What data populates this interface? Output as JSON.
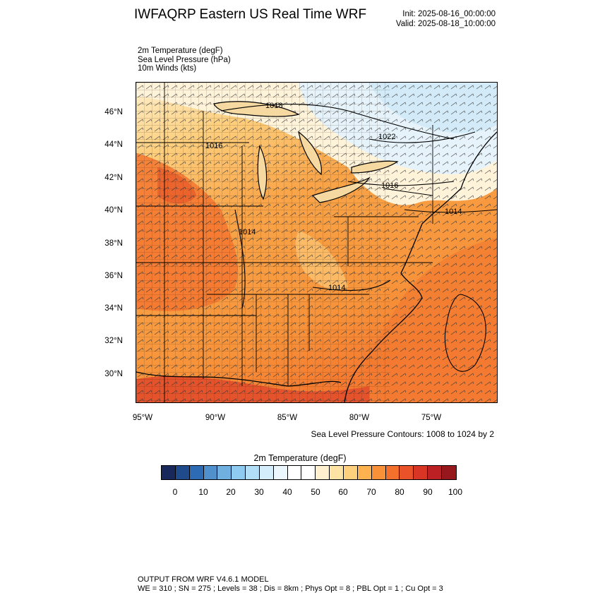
{
  "title": "IWFAQRP Eastern US Real Time WRF",
  "init": "Init: 2025-08-16_00:00:00",
  "valid": "Valid: 2025-08-18_10:00:00",
  "fields": [
    "2m Temperature   (degF)",
    "Sea Level Pressure   (hPa)",
    "10m Winds   (kts)"
  ],
  "lat_labels": [
    "46°N",
    "44°N",
    "42°N",
    "40°N",
    "38°N",
    "36°N",
    "34°N",
    "32°N",
    "30°N"
  ],
  "lon_labels": [
    "95°W",
    "90°W",
    "85°W",
    "80°W",
    "75°W"
  ],
  "isobar_labels": [
    "1018",
    "1022",
    "1016",
    "1014",
    "1014",
    "1014",
    "1016"
  ],
  "contour_note": "Sea Level Pressure Contours: 1008 to 1024 by 2",
  "colorbar": {
    "title": "2m Temperature  (degF)",
    "colors": [
      "#19285a",
      "#1f4a8c",
      "#2d6bb5",
      "#4f90cd",
      "#6fb0e0",
      "#8fcaf0",
      "#b3def7",
      "#d4eefb",
      "#ecf7fd",
      "#ffffff",
      "#ffffff",
      "#fff1cf",
      "#ffe3a5",
      "#fecf7d",
      "#fdb24f",
      "#f99139",
      "#f4712d",
      "#ea5229",
      "#d93525",
      "#bc2024",
      "#96181d"
    ],
    "labels": [
      "0",
      "10",
      "20",
      "30",
      "40",
      "50",
      "60",
      "70",
      "80",
      "90",
      "100"
    ]
  },
  "footer": {
    "line1": "OUTPUT FROM WRF V4.6.1 MODEL",
    "line2": "WE = 310 ; SN = 275 ; Levels = 38 ; Dis = 8km ; Phys Opt = 8 ; PBL Opt = 1 ; Cu Opt = 3"
  }
}
